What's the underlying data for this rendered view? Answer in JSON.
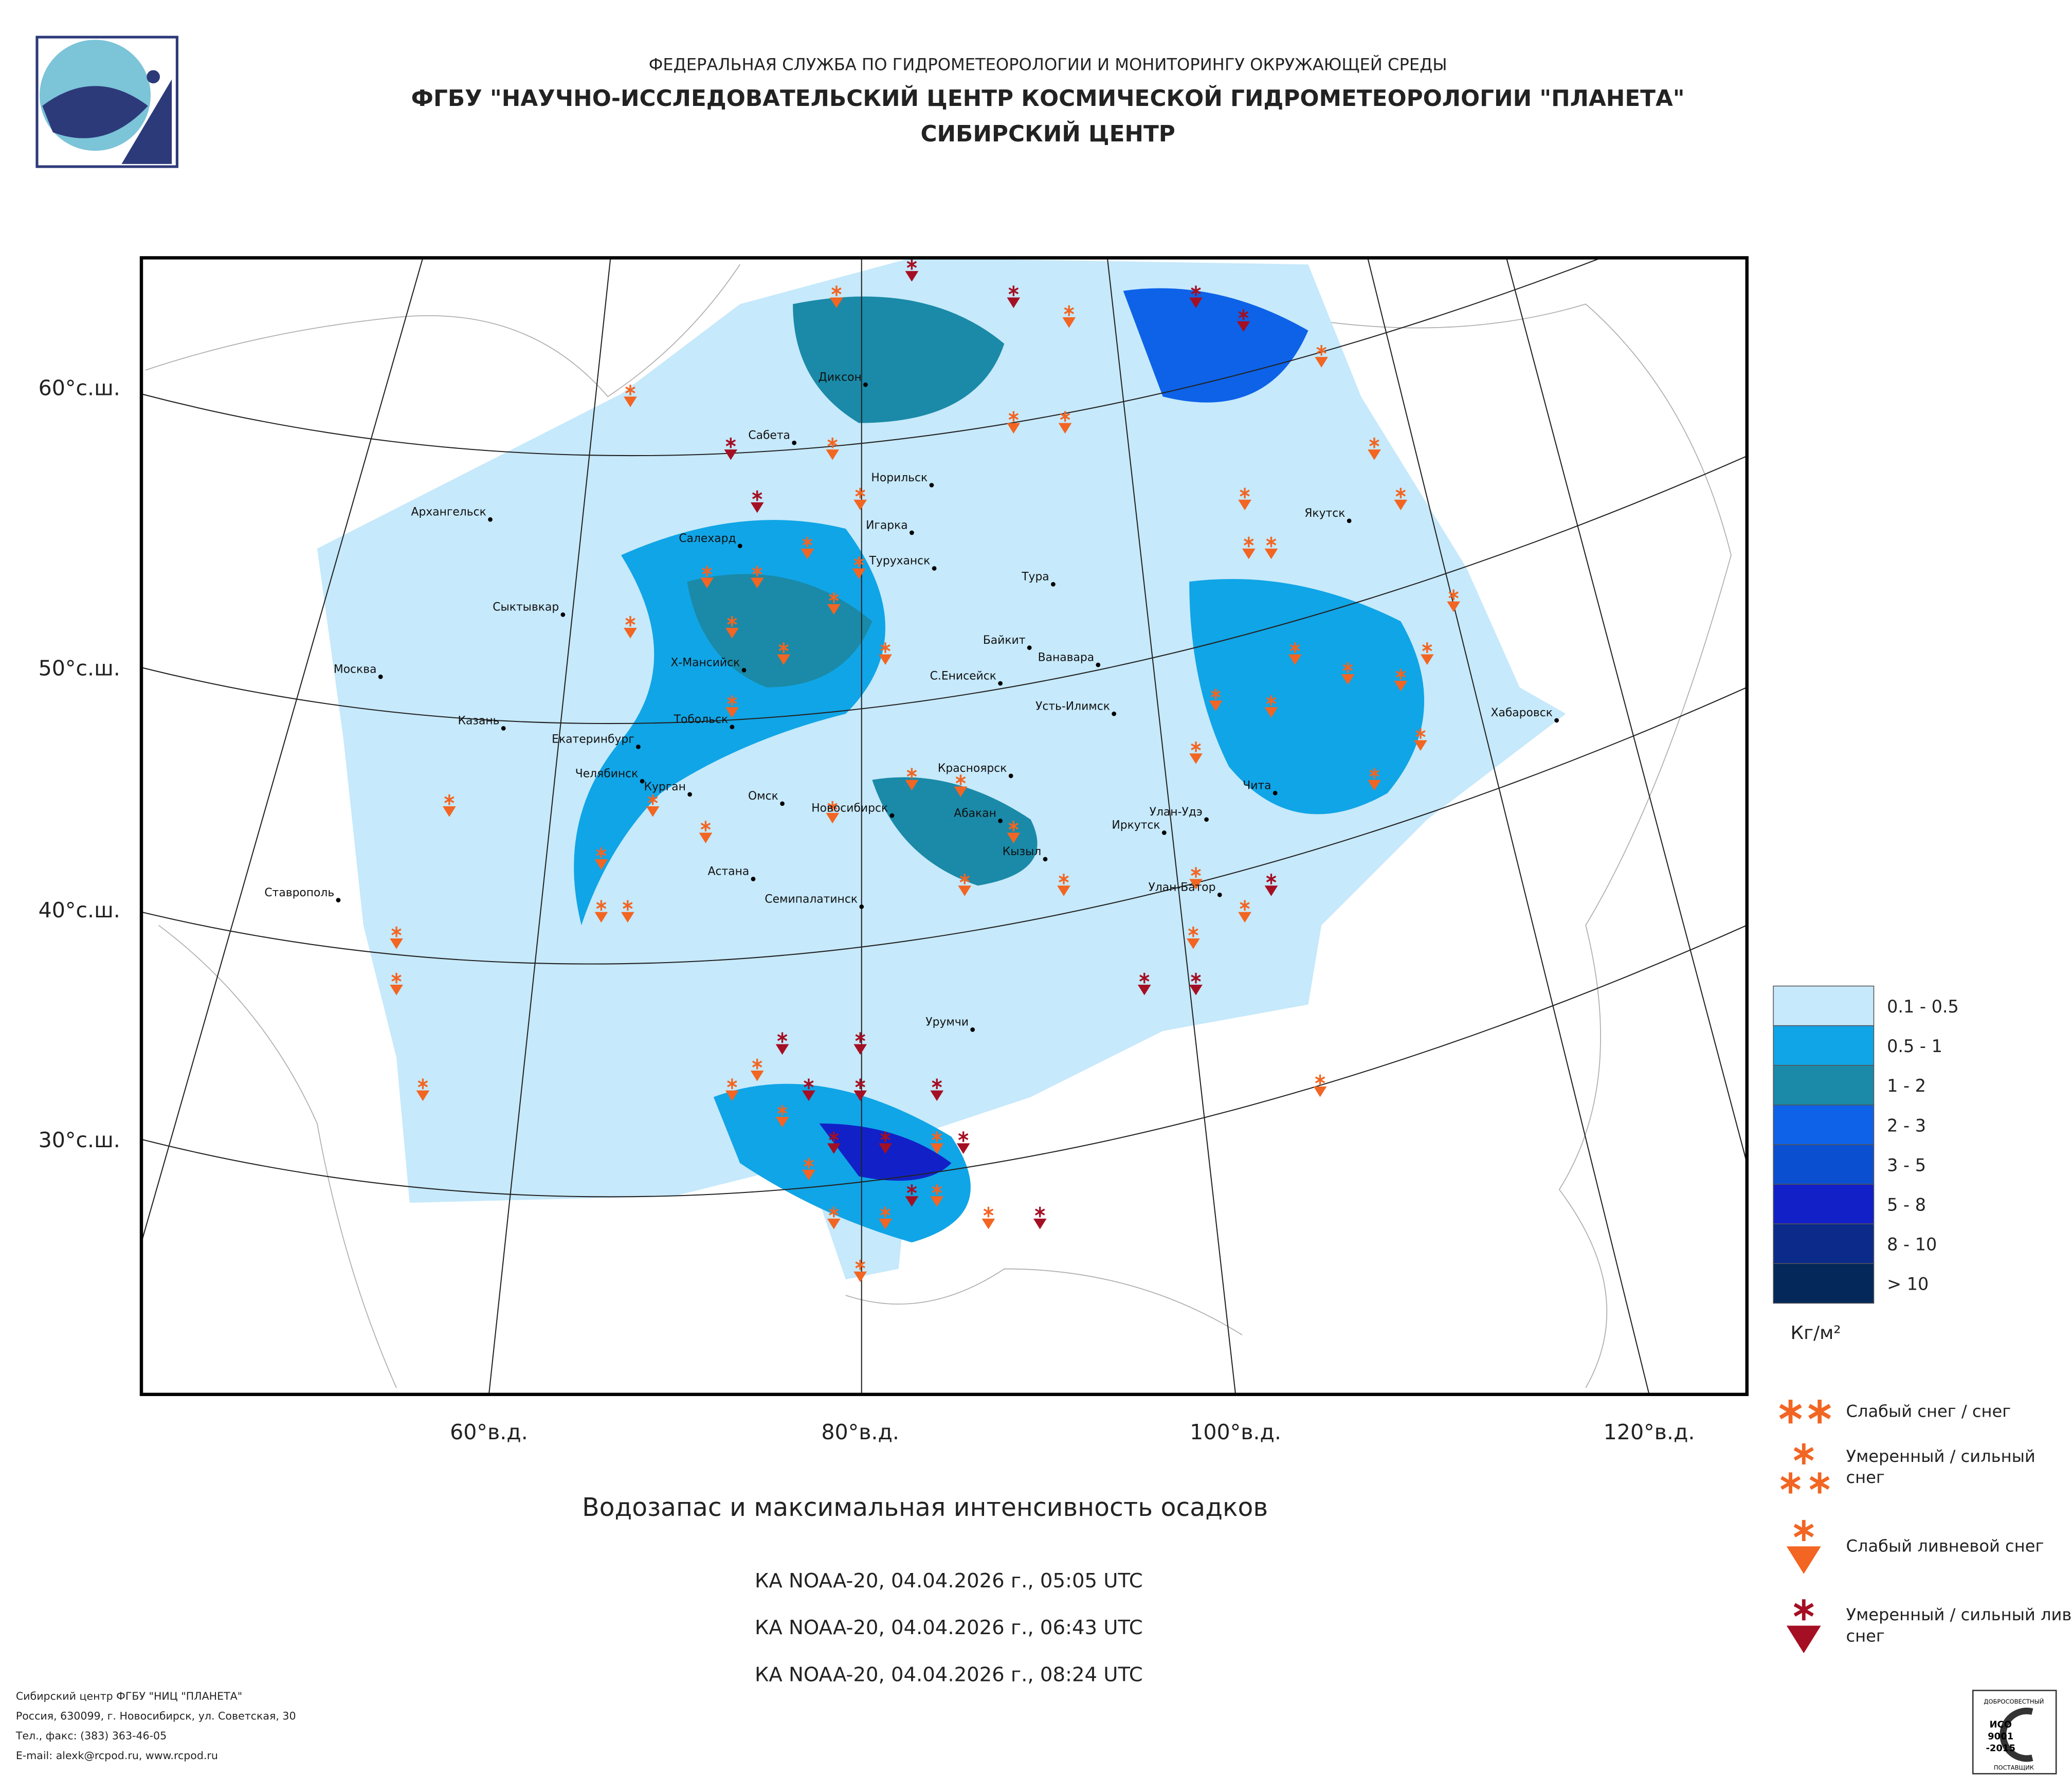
{
  "header": {
    "agency": "ФЕДЕРАЛЬНАЯ СЛУЖБА ПО ГИДРОМЕТЕОРОЛОГИИ И МОНИТОРИНГУ ОКРУЖАЮЩЕЙ СРЕДЫ",
    "center": "ФГБУ \"НАУЧНО-ИССЛЕДОВАТЕЛЬСКИЙ ЦЕНТР КОСМИЧЕСКОЙ ГИДРОМЕТЕОРОЛОГИИ \"ПЛАНЕТА\"",
    "branch": "СИБИРСКИЙ ЦЕНТР"
  },
  "map": {
    "lat_labels": [
      "60°с.ш.",
      "50°с.ш.",
      "40°с.ш.",
      "30°с.ш."
    ],
    "lon_labels": [
      "60°в.д.",
      "80°в.д.",
      "100°в.д.",
      "120°в.д."
    ],
    "cities": [
      "Сабета",
      "Диксон",
      "Норильск",
      "Архангельск",
      "Игарка",
      "Салехард",
      "Туруханск",
      "Тура",
      "Сыктывкар",
      "Байкит",
      "Ванавара",
      "Москва",
      "Х-Мансийск",
      "С.Енисейск",
      "Усть-Илимск",
      "Тобольск",
      "Казань",
      "Хабаровск",
      "Екатеринбург",
      "Красноярск",
      "Челябинск",
      "Чита",
      "Курган",
      "Омск",
      "Новосибирск",
      "Абакан",
      "Улан-Удэ",
      "Иркутск",
      "Кызыл",
      "Астана",
      "Ставрополь",
      "Улан-Батор",
      "Семипалатинск",
      "Урумчи",
      "Якутск"
    ]
  },
  "legend": {
    "classes": [
      {
        "label": "0.1 - 0.5",
        "color": "#c6e9fb"
      },
      {
        "label": "0.5 - 1",
        "color": "#10a5e6"
      },
      {
        "label": "1 - 2",
        "color": "#1a8aa8"
      },
      {
        "label": "2 - 3",
        "color": "#0d62e8"
      },
      {
        "label": "3 - 5",
        "color": "#0a4fd0"
      },
      {
        "label": "5 - 8",
        "color": "#1121c7"
      },
      {
        "label": "8 - 10",
        "color": "#0b2a8a"
      },
      {
        "label": "> 10",
        "color": "#05285a"
      }
    ],
    "unit": "Кг/м²",
    "symbols": [
      {
        "label": "Слабый снег / снег",
        "color": "#f26522"
      },
      {
        "label": "Умеренный / сильный снег",
        "color": "#f26522"
      },
      {
        "label": "Слабый ливневой снег",
        "color": "#f26522"
      },
      {
        "label": "Умеренный / сильный ливневой снег",
        "color": "#a50f23"
      }
    ]
  },
  "caption": {
    "title": "Водозапас и максимальная интенсивность осадков",
    "passes": [
      "КА NOAA-20, 04.04.2026 г., 05:05 UTC",
      "КА NOAA-20, 04.04.2026 г., 06:43 UTC",
      "КА NOAA-20, 04.04.2026 г., 08:24 UTC"
    ]
  },
  "footer": {
    "lines": [
      "Сибирский центр ФГБУ \"НИЦ \"ПЛАНЕТА\"",
      "Россия, 630099, г. Новосибирск, ул. Советская, 30",
      "Тел., факс: (383) 363-46-05",
      "E-mail: alexk@rcpod.ru, www.rcpod.ru"
    ]
  },
  "badge": {
    "top": "ДОБРОСОВЕСТНЫЙ",
    "iso": "ИСО",
    "num": "9001",
    "year": "-2015",
    "bottom": "ПОСТАВЩИК"
  }
}
